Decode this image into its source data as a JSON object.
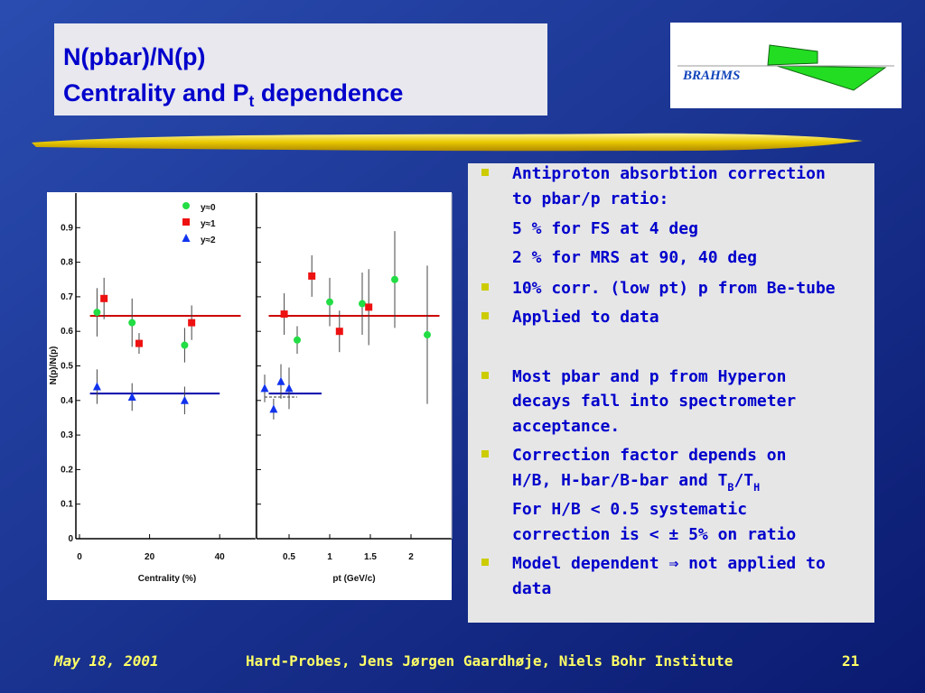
{
  "title": {
    "line1": "N(pbar)/N(p)",
    "line2": [
      "Centrality and P",
      "t",
      " dependence"
    ]
  },
  "logo": "BRAHMS",
  "figure": {
    "ylabel": "N(p)/N(p)",
    "ylim": [
      0,
      1
    ],
    "yticks": [
      0,
      0.1,
      0.2,
      0.3,
      0.4,
      0.5,
      0.6,
      0.7,
      0.8,
      0.9
    ],
    "legend": [
      {
        "name": "y≈0",
        "color": "#22dd44",
        "marker": "circle"
      },
      {
        "name": "y≈1",
        "color": "#ee1111",
        "marker": "square"
      },
      {
        "name": "y≈2",
        "color": "#1133ee",
        "marker": "triangle"
      }
    ],
    "panels": [
      {
        "xlabel": "Centrality (%)",
        "xlim": [
          0,
          50
        ],
        "xticks": [
          0,
          20,
          40
        ],
        "series": [
          {
            "x": [
              5,
              15,
              30
            ],
            "values": [
              0.655,
              0.625,
              0.56
            ],
            "errors": [
              0.07,
              0.07,
              0.05
            ]
          },
          {
            "x": [
              7,
              17,
              32
            ],
            "values": [
              0.695,
              0.565,
              0.625
            ],
            "errors": [
              0.06,
              0.03,
              0.05
            ]
          },
          {
            "x": [
              5,
              15,
              30
            ],
            "values": [
              0.44,
              0.41,
              0.4
            ],
            "errors": [
              0.05,
              0.04,
              0.04
            ]
          }
        ],
        "fits": [
          {
            "value": 0.645,
            "x": [
              3,
              46
            ],
            "color": "#cc0000",
            "style": "solid"
          },
          {
            "value": 0.42,
            "x": [
              3,
              40
            ],
            "color": "#0000aa",
            "style": "solid"
          }
        ]
      },
      {
        "xlabel": "pt (GeV/c)",
        "xlim": [
          0.1,
          2.5
        ],
        "xticks": [
          0.5,
          1,
          1.5,
          2
        ],
        "series": [
          {
            "x": [
              0.6,
              1.0,
              1.4,
              1.8,
              2.2
            ],
            "values": [
              0.575,
              0.685,
              0.68,
              0.75,
              0.59
            ],
            "errors": [
              0.04,
              0.07,
              0.09,
              0.14,
              0.2
            ]
          },
          {
            "x": [
              0.44,
              0.78,
              1.12,
              1.48
            ],
            "values": [
              0.65,
              0.76,
              0.6,
              0.67
            ],
            "errors": [
              0.06,
              0.06,
              0.06,
              0.11
            ]
          },
          {
            "x": [
              0.2,
              0.31,
              0.4,
              0.5
            ],
            "values": [
              0.435,
              0.375,
              0.455,
              0.435
            ],
            "errors": [
              0.04,
              0.03,
              0.05,
              0.06
            ]
          }
        ],
        "fits": [
          {
            "value": 0.645,
            "x": [
              0.25,
              2.35
            ],
            "color": "#cc0000",
            "style": "solid"
          },
          {
            "value": 0.42,
            "x": [
              0.25,
              0.9
            ],
            "color": "#0000aa",
            "style": "solid"
          },
          {
            "value": 0.41,
            "x": [
              0.2,
              0.6
            ],
            "color": "#333333",
            "style": "dashed"
          }
        ]
      }
    ]
  },
  "bullets": [
    {
      "lines": [
        "Antiproton absorbtion correction",
        "to pbar/p ratio:"
      ],
      "notes": [
        "5 % for FS at 4 deg",
        "2 % for MRS at 90, 40  deg"
      ]
    },
    {
      "lines": [
        "10% corr. (low pt) p from Be-tube"
      ]
    },
    {
      "lines": [
        "Applied to data"
      ]
    },
    {
      "lines": [
        "Most pbar and p from Hyperon",
        "decays fall into spectrometer",
        "acceptance."
      ]
    },
    {
      "lines": [
        "Correction factor depends on",
        [
          "H/B, H-bar/B-bar and T",
          "B",
          "/T",
          "H"
        ]
      ],
      "notes": [
        "For H/B < 0.5 systematic",
        "correction is < ± 5% on ratio"
      ]
    },
    {
      "lines": [
        "Model dependent ⇒ not applied to",
        "data"
      ]
    }
  ],
  "footer": {
    "date": "May 18, 2001",
    "event": "Hard-Probes, Jens Jørgen Gaardhøje, Niels Bohr Institute",
    "page": "21"
  }
}
